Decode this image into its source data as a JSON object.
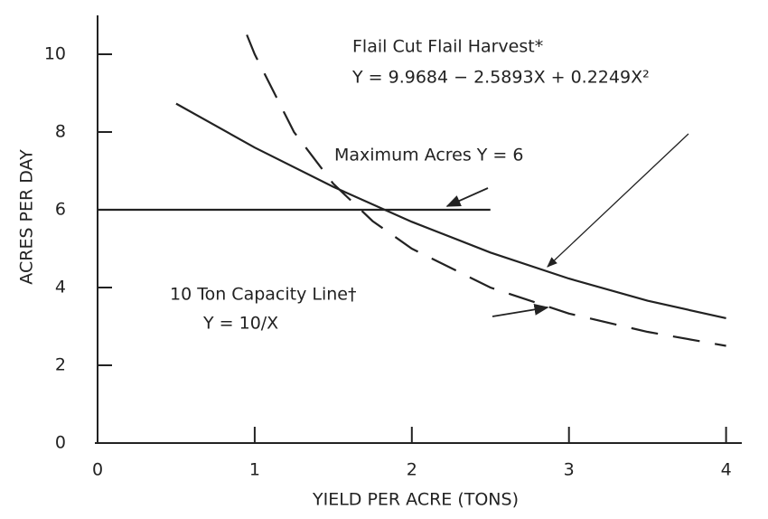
{
  "chart_data": {
    "type": "line",
    "x_label": "YIELD PER ACRE (TONS)",
    "y_label": "ACRES PER DAY",
    "xlim": [
      0,
      4.1
    ],
    "ylim": [
      0,
      11
    ],
    "xticks": [
      0,
      1,
      2,
      3,
      4
    ],
    "yticks": [
      0,
      2,
      4,
      6,
      8,
      10
    ],
    "grid": false,
    "series": [
      {
        "name": "Flail Cut Flail Harvest*",
        "color": "#222222",
        "dash": false,
        "x": [
          0.5,
          1,
          1.5,
          2,
          2.5,
          3,
          3.5,
          4
        ],
        "values": [
          8.73,
          7.6,
          6.59,
          5.69,
          4.9,
          4.23,
          3.66,
          3.21
        ]
      },
      {
        "name": "10 Ton Capacity Line†",
        "color": "#222222",
        "dash": true,
        "x": [
          0.95,
          1,
          1.25,
          1.5,
          1.75,
          2,
          2.5,
          3,
          3.5,
          4
        ],
        "values": [
          10.5,
          10,
          8,
          6.67,
          5.71,
          5,
          4,
          3.33,
          2.86,
          2.5
        ]
      },
      {
        "name": "Maximum Acres Y = 6",
        "color": "#222222",
        "dash": false,
        "x": [
          0,
          2.5
        ],
        "values": [
          6,
          6
        ]
      }
    ],
    "annotations": [
      "Y = 9.9684 − 2.5893X + 0.2249X²",
      "Y = 10/X"
    ]
  }
}
